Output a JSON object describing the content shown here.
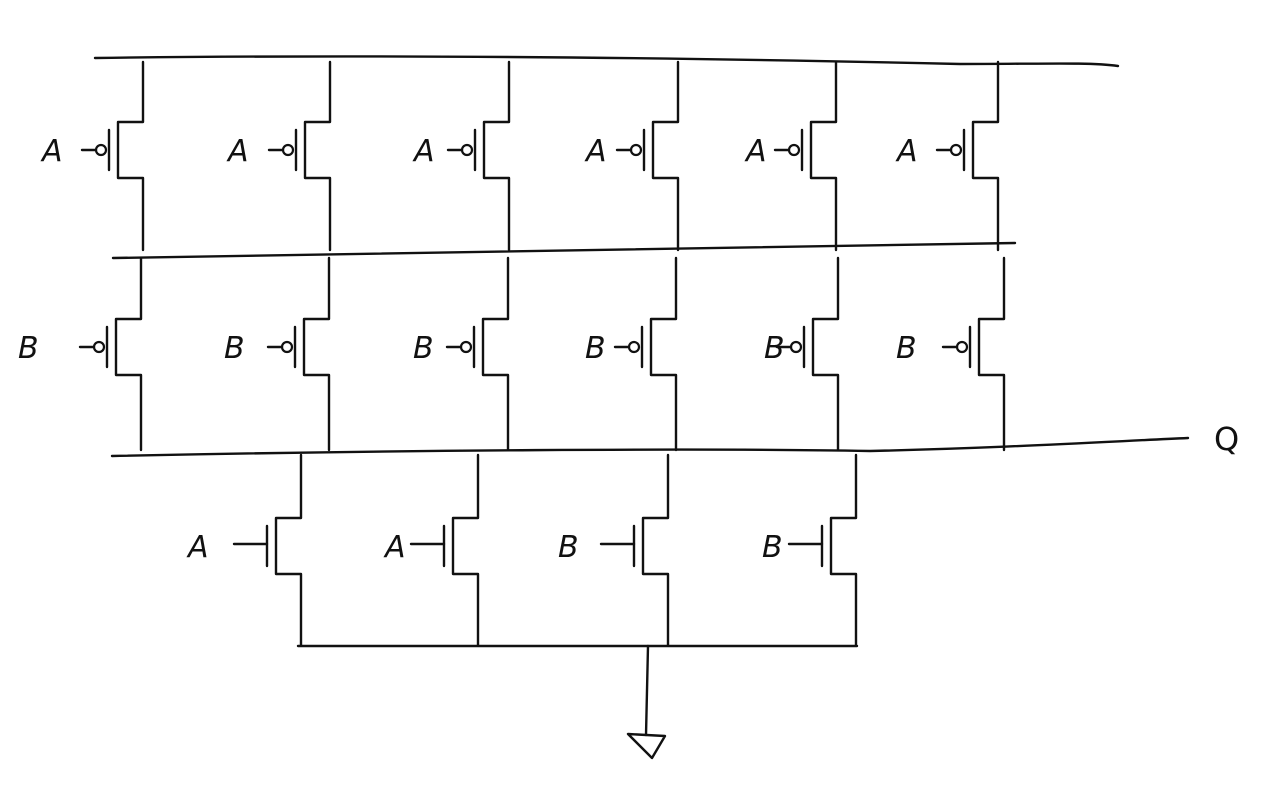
{
  "colors": {
    "ink": "#111111",
    "background": "#ffffff"
  },
  "pmos_row_1": [
    {
      "gate": "A"
    },
    {
      "gate": "A"
    },
    {
      "gate": "A"
    },
    {
      "gate": "A"
    },
    {
      "gate": "A"
    },
    {
      "gate": "A"
    }
  ],
  "pmos_row_2": [
    {
      "gate": "B"
    },
    {
      "gate": "B"
    },
    {
      "gate": "B"
    },
    {
      "gate": "B"
    },
    {
      "gate": "B"
    },
    {
      "gate": "B"
    }
  ],
  "nmos_row": [
    {
      "gate": "A"
    },
    {
      "gate": "A"
    },
    {
      "gate": "B"
    },
    {
      "gate": "B"
    }
  ],
  "output": {
    "label": "Q"
  },
  "ground": {
    "icon": "ground-icon"
  }
}
